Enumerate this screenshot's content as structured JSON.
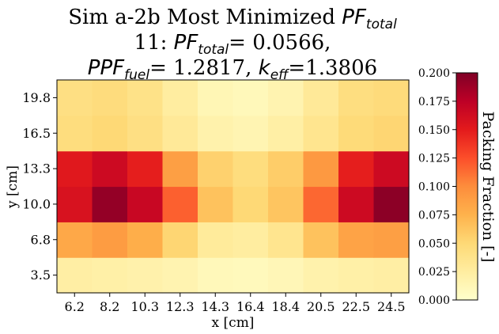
{
  "chart_data": {
    "type": "heatmap",
    "title_lines": [
      {
        "segments": [
          {
            "text": "Sim a-2b Most Minimized "
          },
          {
            "text": "PF",
            "italic": true
          },
          {
            "text": "total",
            "italic": true,
            "sub": true
          }
        ]
      },
      {
        "segments": [
          {
            "text": "11: "
          },
          {
            "text": "PF",
            "italic": true
          },
          {
            "text": "total",
            "italic": true,
            "sub": true
          },
          {
            "text": "= 0.0566,"
          }
        ]
      },
      {
        "segments": [
          {
            "text": "PPF",
            "italic": true
          },
          {
            "text": "fuel",
            "italic": true,
            "sub": true
          },
          {
            "text": "= 1.2817, "
          },
          {
            "text": "k",
            "italic": true
          },
          {
            "text": "eff",
            "italic": true,
            "sub": true
          },
          {
            "text": "=1.3806"
          }
        ]
      }
    ],
    "xlabel": "x [cm]",
    "ylabel": "y [cm]",
    "x": [
      "6.2",
      "8.2",
      "10.3",
      "12.3",
      "14.3",
      "16.4",
      "18.4",
      "20.5",
      "22.5",
      "24.5"
    ],
    "y": [
      "3.5",
      "6.8",
      "10.0",
      "13.3",
      "16.5",
      "19.8"
    ],
    "values": [
      [
        0.023,
        0.021,
        0.019,
        0.016,
        0.01,
        0.009,
        0.012,
        0.018,
        0.021,
        0.023
      ],
      [
        0.082,
        0.09,
        0.078,
        0.052,
        0.028,
        0.025,
        0.035,
        0.065,
        0.085,
        0.088
      ],
      [
        0.158,
        0.192,
        0.168,
        0.118,
        0.065,
        0.05,
        0.063,
        0.115,
        0.165,
        0.195
      ],
      [
        0.152,
        0.165,
        0.148,
        0.088,
        0.055,
        0.045,
        0.058,
        0.092,
        0.148,
        0.165
      ],
      [
        0.045,
        0.05,
        0.042,
        0.03,
        0.018,
        0.015,
        0.022,
        0.035,
        0.048,
        0.052
      ],
      [
        0.042,
        0.046,
        0.039,
        0.025,
        0.013,
        0.01,
        0.016,
        0.03,
        0.044,
        0.047
      ]
    ],
    "colormap": "YlOrRd",
    "vmin": 0.0,
    "vmax": 0.2,
    "colorbar": {
      "label": "Packing Fraction [-]",
      "ticks": [
        "0.000",
        "0.025",
        "0.050",
        "0.075",
        "0.100",
        "0.125",
        "0.150",
        "0.175",
        "0.200"
      ]
    }
  }
}
